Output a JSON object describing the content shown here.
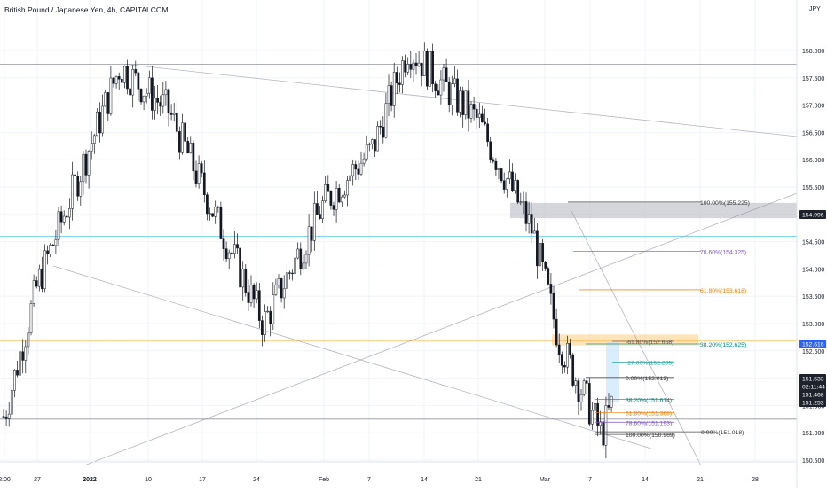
{
  "header": {
    "title": "British Pound / Japanese Yen, 4h, CAPITALCOM",
    "currency": "JPY"
  },
  "chart_data": {
    "type": "candlestick",
    "title": "British Pound / Japanese Yen, 4h, CAPITALCOM",
    "ylabel": "JPY",
    "ylim": [
      150.35,
      158.35
    ],
    "y_ticks": [
      150.5,
      151.0,
      151.5,
      152.0,
      152.5,
      153.0,
      153.5,
      154.0,
      154.5,
      155.0,
      155.5,
      156.0,
      156.5,
      157.0,
      157.5,
      158.0
    ],
    "x_tick_labels": [
      "2:00",
      "27",
      "2022",
      "10",
      "17",
      "24",
      "Feb",
      "7",
      "14",
      "21",
      "Mar",
      "7",
      "14",
      "21",
      "28"
    ],
    "price_path": [
      [
        "2:00",
        151.3
      ],
      [
        "27",
        153.7
      ],
      [
        "3 Jan",
        157.7
      ],
      [
        "10",
        156.9
      ],
      [
        "17",
        155.5
      ],
      [
        "24",
        153.0
      ],
      [
        "Feb",
        155.2
      ],
      [
        "7",
        156.2
      ],
      [
        "14",
        158.05
      ],
      [
        "21",
        156.7
      ],
      [
        "1 Mar",
        154.7
      ],
      [
        "4 Mar",
        152.7
      ],
      [
        "7",
        150.97
      ],
      [
        "9",
        151.53
      ]
    ],
    "fibonacci_levels": [
      {
        "label": "100.00%(155.225)",
        "color": "#333333",
        "value": 155.225
      },
      {
        "label": "78.60%(154.325)",
        "color": "#7e57c2",
        "value": 154.325
      },
      {
        "label": "61.80%(153.618)",
        "color": "#f57c00",
        "value": 153.618
      },
      {
        "label": "38.20%(152.625)",
        "color": "#00897b",
        "value": 152.625
      },
      {
        "label": "-61.80%(152.658)",
        "color": "#555555",
        "value": 152.658
      },
      {
        "label": "-27.00%(152.295)",
        "color": "#26a69a",
        "value": 152.295
      },
      {
        "label": "0.00%(152.013)",
        "color": "#333333",
        "value": 152.013
      },
      {
        "label": "38.20%(151.614)",
        "color": "#00897b",
        "value": 151.614
      },
      {
        "label": "61.80%(151.368)",
        "color": "#f57c00",
        "value": 151.368
      },
      {
        "label": "78.60%(151.193)",
        "color": "#7e57c2",
        "value": 151.193
      },
      {
        "label": "100.00%(150.969)",
        "color": "#333333",
        "value": 150.969
      },
      {
        "label": "0.00%(151.018)",
        "color": "#333333",
        "value": 151.018
      }
    ],
    "price_tags": [
      {
        "label": "154.996",
        "bg": "#1e222d",
        "fg": "#ffffff",
        "value": 154.996
      },
      {
        "label": "152.616",
        "bg": "#2962ff",
        "fg": "#ffffff",
        "value": 152.616
      },
      {
        "label": "151.533",
        "bg": "#1e222d",
        "fg": "#ffffff",
        "value": 151.533
      },
      {
        "label": "02:11:44",
        "bg": "#1e222d",
        "fg": "#ffffff",
        "value": 151.4
      },
      {
        "label": "151.468",
        "bg": "#1e222d",
        "fg": "#ffffff",
        "value": 151.38
      },
      {
        "label": "151.253",
        "bg": "#1e222d",
        "fg": "#ffffff",
        "value": 151.22
      }
    ],
    "horizontal_lines": [
      {
        "value": 157.75,
        "color": "#787b86"
      },
      {
        "value": 154.6,
        "color": "#4fc3f7"
      },
      {
        "value": 152.68,
        "color": "#ffb74d"
      },
      {
        "value": 151.25,
        "color": "#787b86"
      }
    ],
    "zones": [
      {
        "from": 154.93,
        "to": 155.21,
        "color": "#b2b5be"
      },
      {
        "from": 152.6,
        "to": 152.8,
        "color": "#ffcc80"
      }
    ],
    "grid": true
  }
}
